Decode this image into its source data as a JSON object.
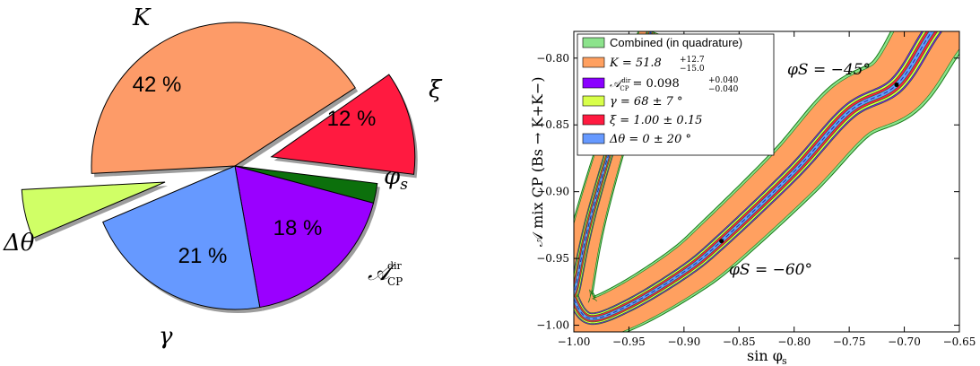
{
  "chart_data": [
    {
      "type": "pie",
      "slices": [
        {
          "label": "K",
          "percent": 42,
          "percent_label": "42 %",
          "color": "#FD9B68",
          "exploded": false
        },
        {
          "label": "ξ",
          "percent": 12,
          "percent_label": "12 %",
          "color": "#FF1A40",
          "exploded": true
        },
        {
          "label": "φs",
          "percent": 2,
          "percent_label": "",
          "color": "#0C700C",
          "exploded": false
        },
        {
          "label": "A_CP^dir",
          "percent": 18,
          "percent_label": "18 %",
          "color": "#9A00FF",
          "exploded": false
        },
        {
          "label": "γ",
          "percent": 21,
          "percent_label": "21 %",
          "color": "#6699FF",
          "exploded": false
        },
        {
          "label": "Δθ",
          "percent": 5,
          "percent_label": "",
          "color": "#D0FF66",
          "exploded": true
        }
      ],
      "label_texts": {
        "K": "K",
        "xi": "ξ",
        "phis": "φ",
        "phis_sub": "s",
        "acp_main": "𝒜",
        "acp_sup": "dir",
        "acp_sub": "CP",
        "gamma": "γ",
        "dtheta": "Δθ"
      }
    },
    {
      "type": "area",
      "xlabel": "sin φs",
      "ylabel": "A_CP^mix(Bs → K+K−)",
      "xlim": [
        -1.0,
        -0.65
      ],
      "ylim": [
        -1.005,
        -0.78
      ],
      "xticks": [
        -1.0,
        -0.95,
        -0.9,
        -0.85,
        -0.8,
        -0.75,
        -0.7,
        -0.65
      ],
      "xtick_labels": [
        "−1.00",
        "−0.95",
        "−0.90",
        "−0.85",
        "−0.80",
        "−0.75",
        "−0.70",
        "−0.65"
      ],
      "yticks": [
        -1.0,
        -0.95,
        -0.9,
        -0.85,
        -0.8
      ],
      "ytick_labels": [
        "−1.00",
        "−0.95",
        "−0.90",
        "−0.85",
        "−0.80"
      ],
      "central_curve": {
        "vertex_x": -0.985,
        "vertex_y": -0.995,
        "points": [
          [
            -1.0,
            -0.98
          ],
          [
            -0.985,
            -0.995
          ],
          [
            -0.95,
            -0.985
          ],
          [
            -0.9,
            -0.96
          ],
          [
            -0.866,
            -0.937
          ],
          [
            -0.8,
            -0.885
          ],
          [
            -0.75,
            -0.84
          ],
          [
            -0.707,
            -0.82
          ],
          [
            -0.675,
            -0.78
          ]
        ]
      },
      "series": [
        {
          "name": "Combined (in quadrature)",
          "color": "#8CE38C",
          "half_width": 0.012
        },
        {
          "name": "K = 51.8 +12.7 −15.0",
          "color": "#FFA060",
          "half_width": 0.011
        },
        {
          "name": "A_CP^dir = 0.098 +0.040 −0.040",
          "color": "#8A00FF",
          "half_width": 0.004
        },
        {
          "name": "γ = 68 ± 7°",
          "color": "#D8FF4A",
          "half_width": 0.0032
        },
        {
          "name": "ξ = 1.00 ± 0.15",
          "color": "#FF1A40",
          "half_width": 0.0022
        },
        {
          "name": "Δθ = 0 ± 20°",
          "color": "#6699FF",
          "half_width": 0.0012
        }
      ],
      "points": [
        {
          "label": "φS = −45°",
          "x": -0.707,
          "y": -0.82
        },
        {
          "label": "φS = −60°",
          "x": -0.866,
          "y": -0.937
        }
      ],
      "legend_placement": "top-left",
      "grid": false
    }
  ],
  "legend_texts": [
    {
      "main": "Combined (in quadrature)",
      "sup": "",
      "sub": ""
    },
    {
      "main": "K = 51.8",
      "sup": "+12.7",
      "sub": "−15.0"
    },
    {
      "main": "= 0.098",
      "sup": "+0.040",
      "sub": "−0.040"
    },
    {
      "main": "γ  = 68 ± 7 °",
      "sup": "",
      "sub": ""
    },
    {
      "main": "ξ  = 1.00 ± 0.15",
      "sup": "",
      "sub": ""
    },
    {
      "main": "Δθ = 0 ± 20 °",
      "sup": "",
      "sub": ""
    }
  ],
  "annotations": {
    "phi45": "φS = −45°",
    "phi60": "φS = −60°"
  },
  "axis_texts": {
    "xlabel_main": "sin φ",
    "xlabel_sub": "s",
    "ylabel": "𝒜 mix CP (Bs → K+K−)"
  }
}
